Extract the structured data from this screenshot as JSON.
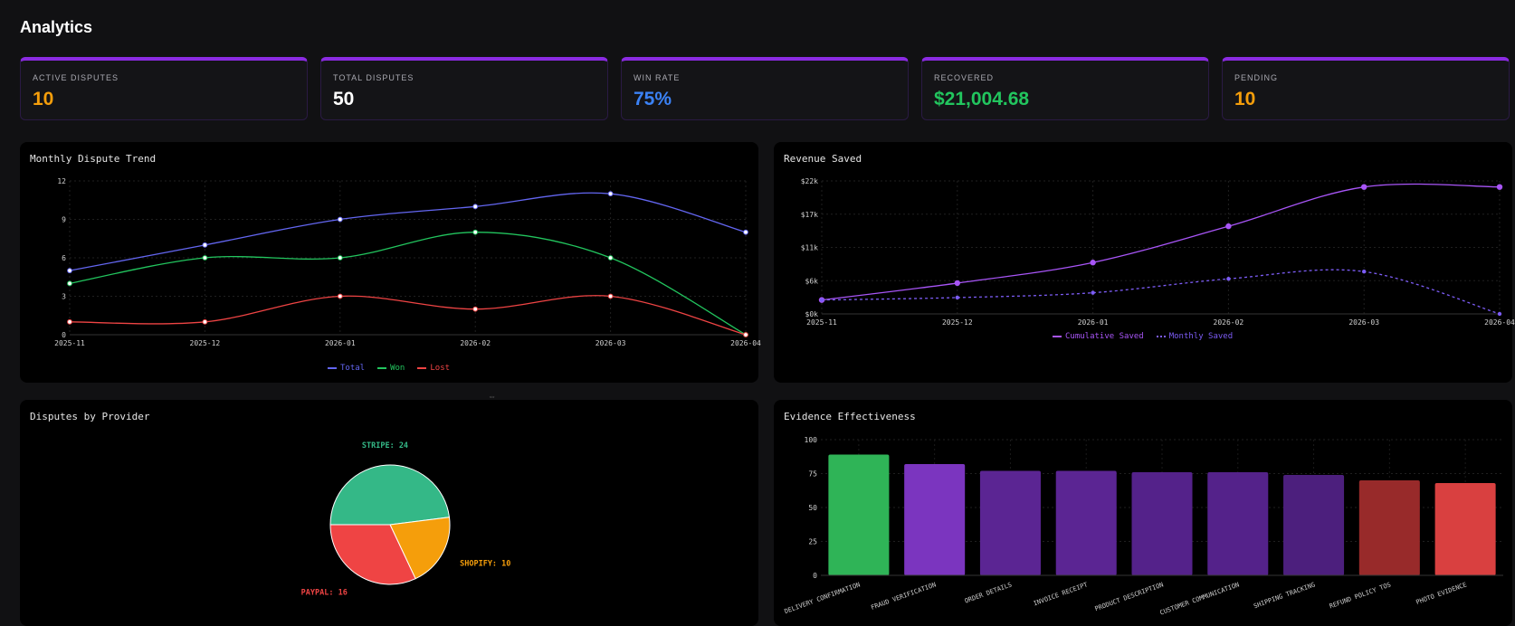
{
  "page": {
    "title": "Analytics"
  },
  "kpis": [
    {
      "label": "ACTIVE DISPUTES",
      "value": "10",
      "color": "#f59e0b"
    },
    {
      "label": "TOTAL DISPUTES",
      "value": "50",
      "color": "#ffffff"
    },
    {
      "label": "WIN RATE",
      "value": "75%",
      "color": "#3b82f6"
    },
    {
      "label": "RECOVERED",
      "value": "$21,004.68",
      "color": "#22c55e"
    },
    {
      "label": "PENDING",
      "value": "10",
      "color": "#f59e0b"
    }
  ],
  "panels": {
    "trend": {
      "title": "Monthly Dispute Trend"
    },
    "revenue": {
      "title": "Revenue Saved"
    },
    "providers": {
      "title": "Disputes by Provider"
    },
    "evidence": {
      "title": "Evidence Effectiveness"
    }
  },
  "chart_data": [
    {
      "type": "line",
      "title": "Monthly Dispute Trend",
      "x": [
        "2025-11",
        "2025-12",
        "2026-01",
        "2026-02",
        "2026-03",
        "2026-04"
      ],
      "ylim": [
        0,
        12
      ],
      "yticks": [
        "0",
        "3",
        "6",
        "9",
        "12"
      ],
      "grid": true,
      "legend": "bottom",
      "series": [
        {
          "name": "Total",
          "color": "#6366f1",
          "values": [
            5,
            7,
            9,
            10,
            11,
            8
          ]
        },
        {
          "name": "Won",
          "color": "#22c55e",
          "values": [
            4,
            6,
            6,
            8,
            6,
            0
          ]
        },
        {
          "name": "Lost",
          "color": "#ef4444",
          "values": [
            1,
            1,
            3,
            2,
            3,
            0
          ]
        }
      ]
    },
    {
      "type": "line",
      "title": "Revenue Saved",
      "x": [
        "2025-11",
        "2025-12",
        "2026-01",
        "2026-02",
        "2026-03",
        "2026-04"
      ],
      "ylim": [
        0,
        22000
      ],
      "yticks": [
        "$0k",
        "$6k",
        "$11k",
        "$17k",
        "$22k"
      ],
      "grid": true,
      "legend": "bottom",
      "series": [
        {
          "name": "Cumulative Saved",
          "color": "#a855f7",
          "style": "solid",
          "values": [
            2300,
            5100,
            8500,
            14500,
            21000,
            21000
          ]
        },
        {
          "name": "Monthly Saved",
          "color": "#7c5cf5",
          "style": "dotted",
          "values": [
            2300,
            2700,
            3500,
            5800,
            7000,
            0
          ]
        }
      ]
    },
    {
      "type": "pie",
      "title": "Disputes by Provider",
      "slices": [
        {
          "label": "STRIPE: 24",
          "value": 24,
          "color": "#34b887"
        },
        {
          "label": "SHOPIFY: 10",
          "value": 10,
          "color": "#f59e0b"
        },
        {
          "label": "PAYPAL: 16",
          "value": 16,
          "color": "#ef4444"
        }
      ]
    },
    {
      "type": "bar",
      "title": "Evidence Effectiveness",
      "categories": [
        "DELIVERY CONFIRMATION",
        "FRAUD VERIFICATION",
        "ORDER DETAILS",
        "INVOICE RECEIPT",
        "PRODUCT DESCRIPTION",
        "CUSTOMER COMMUNICATION",
        "SHIPPING TRACKING",
        "REFUND POLICY TOS",
        "PHOTO EVIDENCE"
      ],
      "values": [
        89,
        82,
        77,
        77,
        76,
        76,
        74,
        70,
        68
      ],
      "colors": [
        "#2fb457",
        "#7b35bf",
        "#5b2593",
        "#5b2593",
        "#54228a",
        "#54228a",
        "#4c1f7d",
        "#982a2a",
        "#d94040"
      ],
      "ylim": [
        0,
        100
      ],
      "yticks": [
        "0",
        "25",
        "50",
        "75",
        "100"
      ],
      "grid": true
    }
  ]
}
